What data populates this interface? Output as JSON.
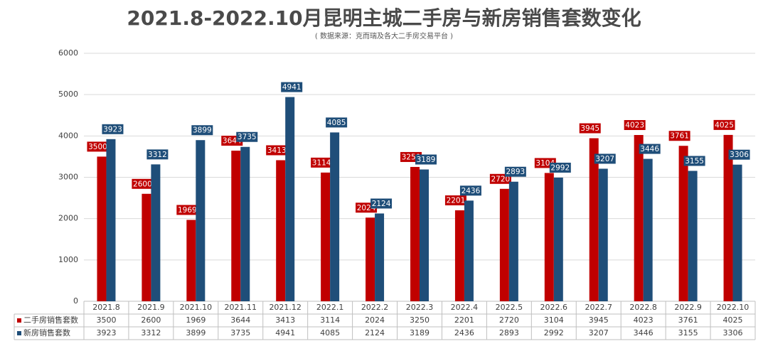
{
  "chart_data": {
    "type": "bar",
    "title": "2021.8-2022.10月昆明主城二手房与新房销售套数变化",
    "subtitle": "( 数据来源：克而瑞及各大二手房交易平台 )",
    "categories": [
      "2021.8",
      "2021.9",
      "2021.10",
      "2021.11",
      "2021.12",
      "2022.1",
      "2022.2",
      "2022.3",
      "2022.4",
      "2022.5",
      "2022.6",
      "2022.7",
      "2022.8",
      "2022.9",
      "2022.10"
    ],
    "series": [
      {
        "name": "二手房销售套数",
        "color": "#c00000",
        "values": [
          3500,
          2600,
          1969,
          3644,
          3413,
          3114,
          2024,
          3250,
          2201,
          2720,
          3104,
          3945,
          4023,
          3761,
          4025
        ]
      },
      {
        "name": "新房销售套数",
        "color": "#1f4e79",
        "values": [
          3923,
          3312,
          3899,
          3735,
          4941,
          4085,
          2124,
          3189,
          2436,
          2893,
          2992,
          3207,
          3446,
          3155,
          3306
        ]
      }
    ],
    "ylim": [
      0,
      6000
    ],
    "yticks": [
      0,
      1000,
      2000,
      3000,
      4000,
      5000,
      6000
    ],
    "grid": true
  }
}
